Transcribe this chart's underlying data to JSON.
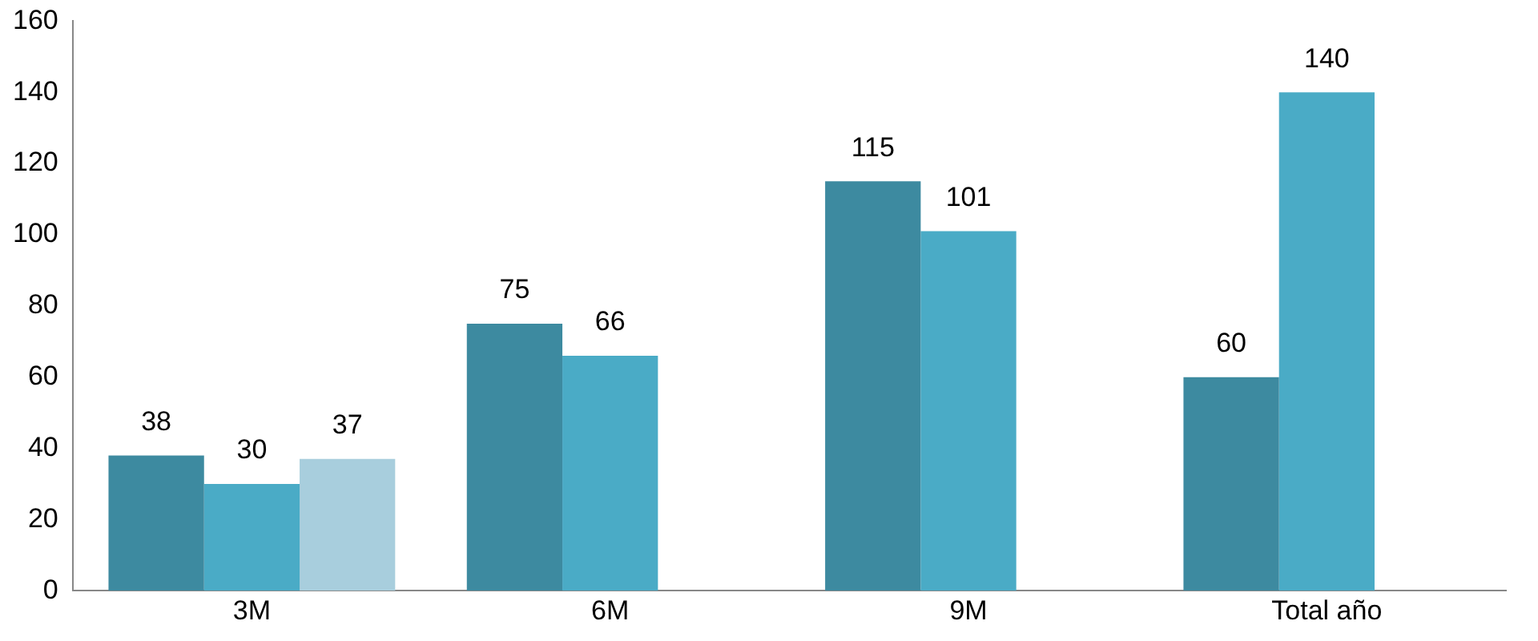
{
  "chart_data": {
    "type": "bar",
    "categories": [
      "3M",
      "6M",
      "9M",
      "Total año"
    ],
    "series": [
      {
        "color": "#3d8aa0",
        "values": [
          38,
          75,
          115,
          60
        ]
      },
      {
        "color": "#4aabc6",
        "values": [
          30,
          66,
          101,
          140
        ]
      },
      {
        "color": "#a8cedd",
        "values": [
          37,
          null,
          null,
          null
        ]
      }
    ],
    "ylim": [
      0,
      160
    ],
    "yticks": [
      0,
      20,
      40,
      60,
      80,
      100,
      120,
      140,
      160
    ],
    "grid": false,
    "legend": false,
    "data_labels": true
  }
}
